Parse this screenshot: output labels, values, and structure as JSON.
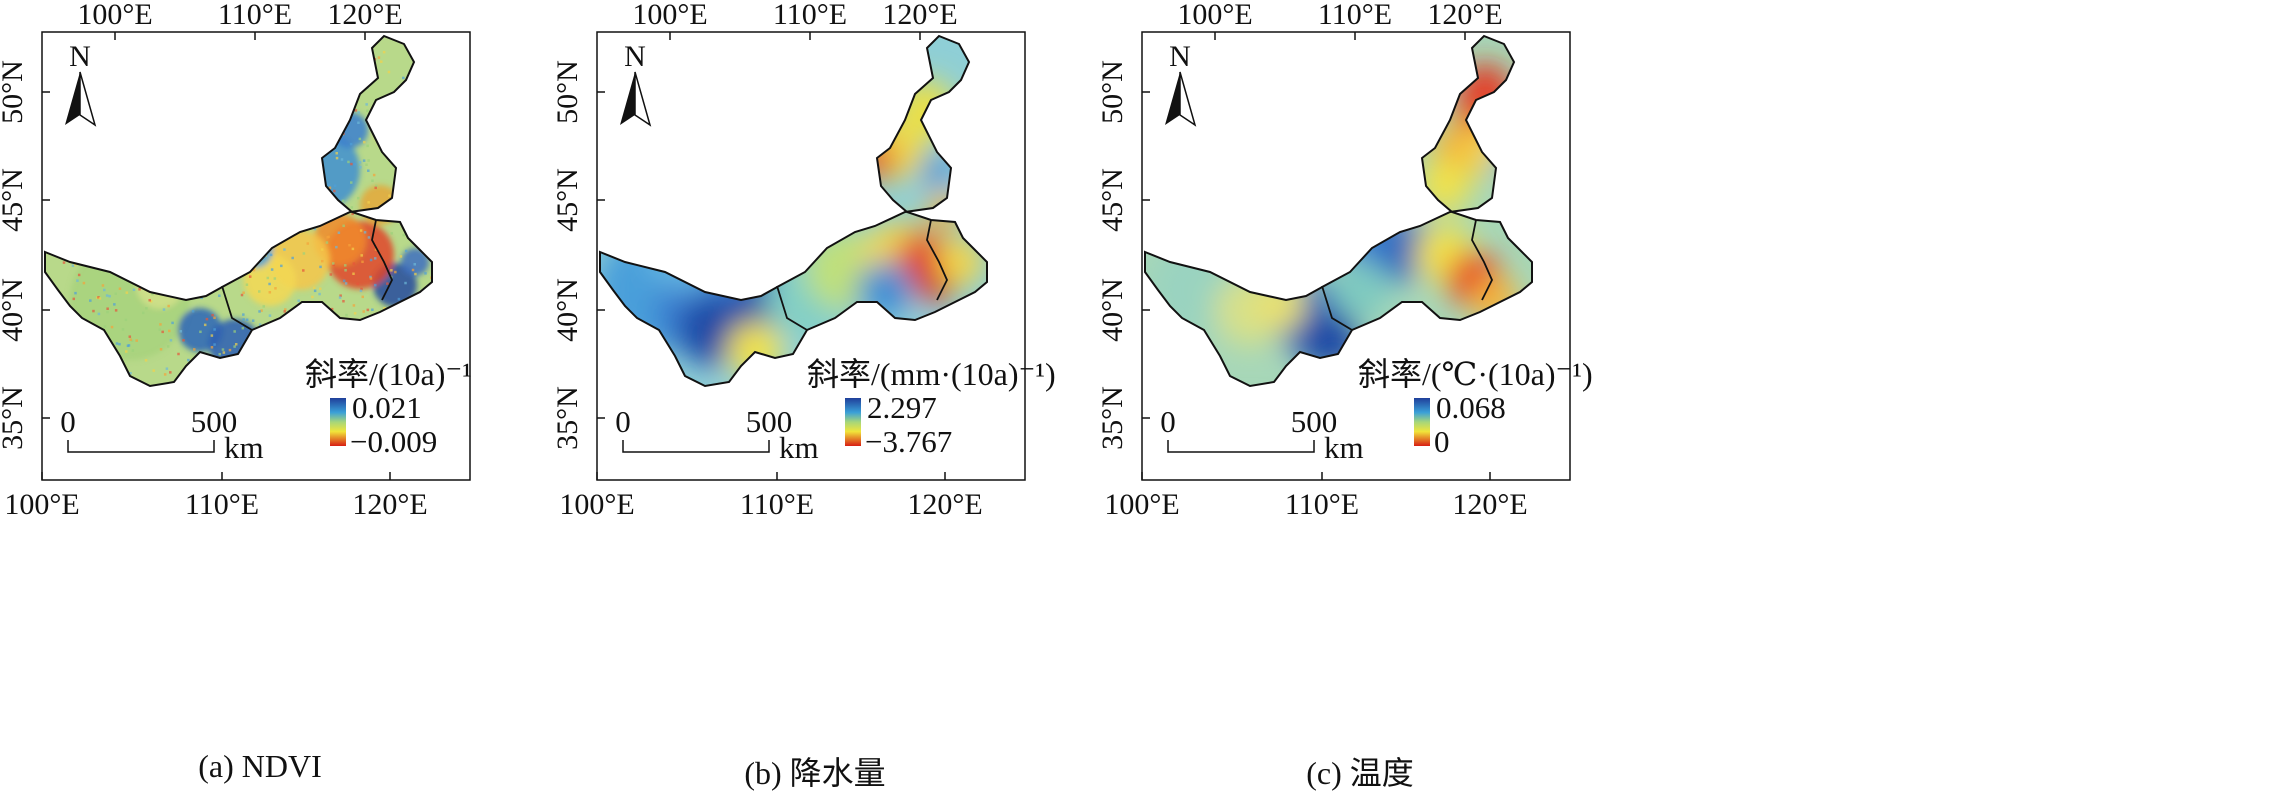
{
  "axes": {
    "top_ticks": [
      "100°E",
      "110°E",
      "120°E"
    ],
    "bottom_ticks": [
      "100°E",
      "110°E",
      "120°E"
    ],
    "left_ticks": [
      "50°N",
      "45°N",
      "40°N",
      "35°N"
    ]
  },
  "north_arrow_label": "N",
  "scale_bar": {
    "start": "0",
    "end": "500",
    "unit": "km"
  },
  "panels": [
    {
      "id": "a",
      "caption": "(a) NDVI",
      "legend_title": "斜率/(10a)⁻¹",
      "legend_max": "0.021",
      "legend_min": "−0.009",
      "colors": {
        "high": "#1f3f9a",
        "mid": "#9fd27a",
        "low": "#d81e14"
      }
    },
    {
      "id": "b",
      "caption": "(b) 降水量",
      "legend_title": "斜率/(mm·(10a)⁻¹)",
      "legend_max": "2.297",
      "legend_min": "−3.767",
      "colors": {
        "high": "#1f3f9a",
        "mid": "#e6e23a",
        "low": "#d81e14"
      }
    },
    {
      "id": "c",
      "caption": "(c) 温度",
      "legend_title": "斜率/(℃·(10a)⁻¹)",
      "legend_max": "0.068",
      "legend_min": "0",
      "colors": {
        "high": "#1f3f9a",
        "mid": "#e6e23a",
        "low": "#d81e14"
      }
    }
  ]
}
